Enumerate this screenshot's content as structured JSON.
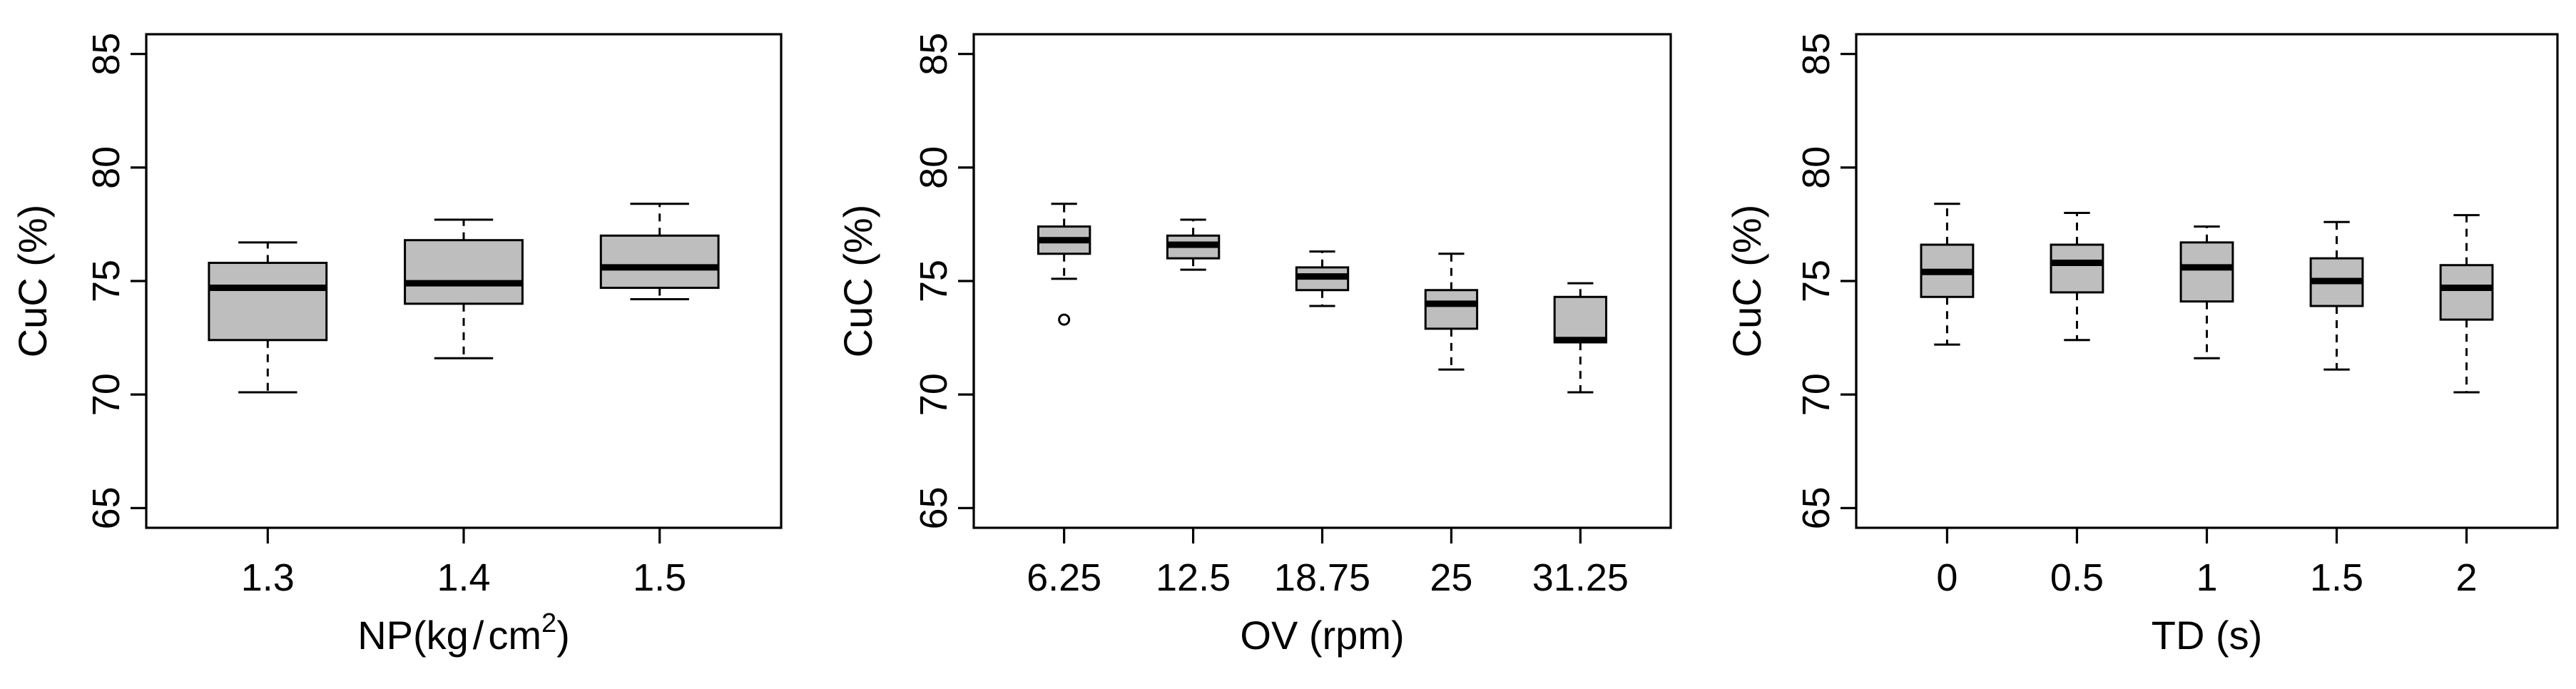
{
  "colors": {
    "box_fill": "#bebebe",
    "line": "#000000",
    "background": "#ffffff"
  },
  "chart_data": [
    {
      "type": "box",
      "title": "",
      "xlabel": "NP(kg/cm²)",
      "xlabel_parts": {
        "pre": "NP(kg",
        "slash": "/",
        "unit": "cm",
        "sup": "2",
        "post": ")"
      },
      "ylabel": "CuC (%)",
      "ylim": [
        65,
        85
      ],
      "yticks": [
        65,
        70,
        75,
        80,
        85
      ],
      "categories": [
        "1.3",
        "1.4",
        "1.5"
      ],
      "boxes": [
        {
          "min": 70.1,
          "q1": 72.4,
          "median": 74.7,
          "q3": 75.8,
          "max": 76.7,
          "outliers": []
        },
        {
          "min": 71.6,
          "q1": 74.0,
          "median": 74.9,
          "q3": 76.8,
          "max": 77.7,
          "outliers": []
        },
        {
          "min": 74.2,
          "q1": 74.7,
          "median": 75.6,
          "q3": 77.0,
          "max": 78.4,
          "outliers": []
        }
      ]
    },
    {
      "type": "box",
      "title": "",
      "xlabel": "OV (rpm)",
      "ylabel": "CuC (%)",
      "ylim": [
        65,
        85
      ],
      "yticks": [
        65,
        70,
        75,
        80,
        85
      ],
      "categories": [
        "6.25",
        "12.5",
        "18.75",
        "25",
        "31.25"
      ],
      "boxes": [
        {
          "min": 75.1,
          "q1": 76.2,
          "median": 76.8,
          "q3": 77.4,
          "max": 78.4,
          "outliers": [
            73.3
          ]
        },
        {
          "min": 75.5,
          "q1": 76.0,
          "median": 76.6,
          "q3": 77.0,
          "max": 77.7,
          "outliers": []
        },
        {
          "min": 73.9,
          "q1": 74.6,
          "median": 75.2,
          "q3": 75.6,
          "max": 76.3,
          "outliers": []
        },
        {
          "min": 71.1,
          "q1": 72.9,
          "median": 74.0,
          "q3": 74.6,
          "max": 76.2,
          "outliers": []
        },
        {
          "min": 70.1,
          "q1": 72.3,
          "median": 72.4,
          "q3": 74.3,
          "max": 74.9,
          "outliers": []
        }
      ]
    },
    {
      "type": "box",
      "title": "",
      "xlabel": "TD (s)",
      "ylabel": "CuC (%)",
      "ylim": [
        65,
        85
      ],
      "yticks": [
        65,
        70,
        75,
        80,
        85
      ],
      "categories": [
        "0",
        "0.5",
        "1",
        "1.5",
        "2"
      ],
      "boxes": [
        {
          "min": 72.2,
          "q1": 74.3,
          "median": 75.4,
          "q3": 76.6,
          "max": 78.4,
          "outliers": []
        },
        {
          "min": 72.4,
          "q1": 74.5,
          "median": 75.8,
          "q3": 76.6,
          "max": 78.0,
          "outliers": []
        },
        {
          "min": 71.6,
          "q1": 74.1,
          "median": 75.6,
          "q3": 76.7,
          "max": 77.4,
          "outliers": []
        },
        {
          "min": 71.1,
          "q1": 73.9,
          "median": 75.0,
          "q3": 76.0,
          "max": 77.6,
          "outliers": []
        },
        {
          "min": 70.1,
          "q1": 73.3,
          "median": 74.7,
          "q3": 75.7,
          "max": 77.9,
          "outliers": []
        }
      ]
    }
  ]
}
